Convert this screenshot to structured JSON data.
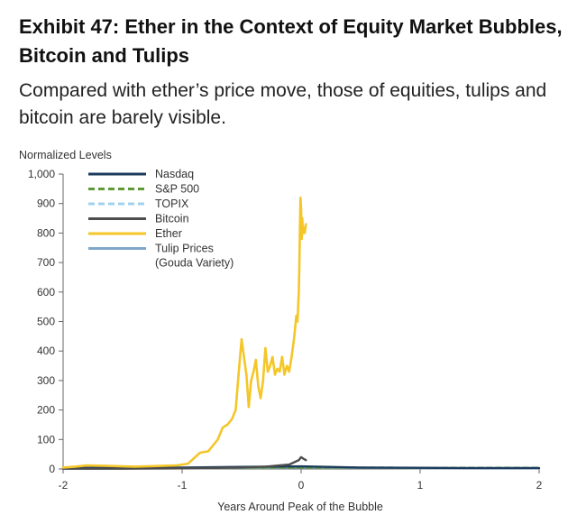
{
  "header": {
    "title": "Exhibit 47: Ether in the Context of Equity Market Bubbles, Bitcoin and Tulips",
    "subtitle": "Compared with ether’s price move, those of equities, tulips and bitcoin are barely visible."
  },
  "chart_data": {
    "type": "line",
    "title": "Exhibit 47: Ether in the Context of Equity Market Bubbles, Bitcoin and Tulips",
    "subtitle": "Compared with ether’s price move, those of equities, tulips and bitcoin are barely visible.",
    "xlabel": "Years Around Peak of the Bubble",
    "ylabel": "Normalized Levels",
    "xlim": [
      -2,
      2
    ],
    "ylim": [
      0,
      1000
    ],
    "xticks": [
      "-2",
      "-1",
      "0",
      "1",
      "2"
    ],
    "xtick_values": [
      -2,
      -1,
      0,
      1,
      2
    ],
    "yticks": [
      "0",
      "100",
      "200",
      "300",
      "400",
      "500",
      "600",
      "700",
      "800",
      "900",
      "1,000"
    ],
    "ytick_values": [
      0,
      100,
      200,
      300,
      400,
      500,
      600,
      700,
      800,
      900,
      1000
    ],
    "grid": false,
    "legend_position": "top-left",
    "series": [
      {
        "name": "Nasdaq",
        "color": "#1b3a5c",
        "dash": "solid",
        "x": [
          -2,
          -1.5,
          -1,
          -0.5,
          0,
          0.5,
          1,
          1.5,
          2
        ],
        "y": [
          3,
          4,
          5,
          7,
          9,
          5,
          4,
          3,
          3
        ]
      },
      {
        "name": "S&P 500",
        "color": "#5e9a36",
        "dash": "dashed",
        "x": [
          -2,
          -1,
          0,
          1,
          2
        ],
        "y": [
          3,
          4,
          5,
          4,
          4
        ]
      },
      {
        "name": "TOPIX",
        "color": "#9fd3ee",
        "dash": "dashed",
        "x": [
          -2,
          -1,
          0,
          1,
          2
        ],
        "y": [
          2,
          3,
          5,
          4,
          3
        ]
      },
      {
        "name": "Bitcoin",
        "color": "#4d4d4d",
        "dash": "solid",
        "x": [
          -2,
          -1.5,
          -1,
          -0.5,
          -0.3,
          -0.1,
          -0.02,
          0,
          0.02,
          0.04
        ],
        "y": [
          1,
          1,
          2,
          5,
          8,
          15,
          30,
          40,
          35,
          30
        ]
      },
      {
        "name": "Ether",
        "color": "#f4c628",
        "dash": "solid",
        "x": [
          -2,
          -1.9,
          -1.8,
          -1.6,
          -1.4,
          -1.2,
          -1.05,
          -0.95,
          -0.85,
          -0.78,
          -0.74,
          -0.7,
          -0.66,
          -0.62,
          -0.58,
          -0.55,
          -0.52,
          -0.5,
          -0.48,
          -0.46,
          -0.44,
          -0.42,
          -0.4,
          -0.38,
          -0.36,
          -0.34,
          -0.32,
          -0.3,
          -0.28,
          -0.26,
          -0.24,
          -0.22,
          -0.2,
          -0.18,
          -0.16,
          -0.14,
          -0.12,
          -0.1,
          -0.08,
          -0.06,
          -0.04,
          -0.03,
          -0.02,
          -0.015,
          -0.01,
          -0.005,
          0,
          0.005,
          0.01,
          0.015,
          0.02,
          0.03,
          0.04
        ],
        "y": [
          5,
          8,
          12,
          10,
          8,
          10,
          12,
          18,
          55,
          60,
          80,
          100,
          140,
          150,
          170,
          200,
          350,
          440,
          380,
          320,
          210,
          300,
          330,
          370,
          280,
          240,
          300,
          410,
          330,
          350,
          380,
          320,
          340,
          330,
          380,
          320,
          350,
          330,
          380,
          440,
          520,
          500,
          600,
          680,
          820,
          920,
          880,
          780,
          850,
          800,
          820,
          800,
          830
        ]
      },
      {
        "name": "Tulip Prices\n(Gouda Variety)",
        "color": "#7fa7c9",
        "dash": "solid",
        "x": [
          -2,
          -1.5,
          -1,
          -0.5,
          0,
          0.5,
          1,
          1.5,
          2
        ],
        "y": [
          1,
          2,
          3,
          4,
          5,
          4,
          3,
          2,
          2
        ]
      }
    ]
  }
}
